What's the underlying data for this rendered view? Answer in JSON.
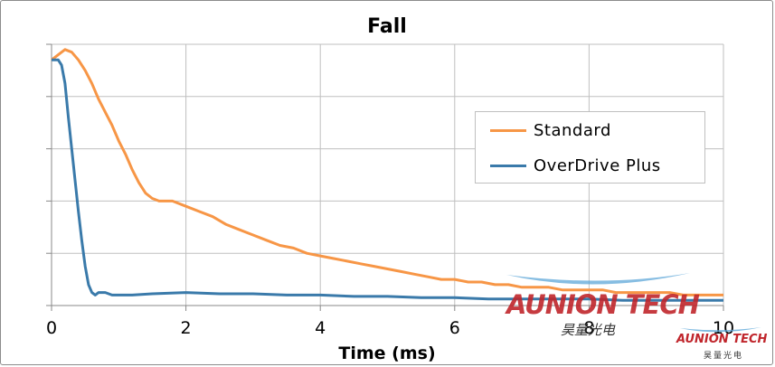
{
  "chart_data": {
    "type": "line",
    "title": "Fall",
    "xlabel": "Time (ms)",
    "ylabel": "",
    "xlim": [
      0,
      10
    ],
    "ylim": [
      0,
      1
    ],
    "x_ticks": [
      "0",
      "2",
      "4",
      "6",
      "8",
      "10"
    ],
    "grid": true,
    "legend_position": "center-right",
    "series": [
      {
        "name": "Standard",
        "color": "#f79646",
        "points": [
          [
            0,
            0.94
          ],
          [
            0.1,
            0.96
          ],
          [
            0.2,
            0.98
          ],
          [
            0.3,
            0.97
          ],
          [
            0.4,
            0.94
          ],
          [
            0.5,
            0.9
          ],
          [
            0.6,
            0.85
          ],
          [
            0.7,
            0.79
          ],
          [
            0.8,
            0.74
          ],
          [
            0.9,
            0.69
          ],
          [
            1.0,
            0.63
          ],
          [
            1.1,
            0.58
          ],
          [
            1.2,
            0.52
          ],
          [
            1.3,
            0.47
          ],
          [
            1.4,
            0.43
          ],
          [
            1.5,
            0.41
          ],
          [
            1.6,
            0.4
          ],
          [
            1.8,
            0.4
          ],
          [
            2.0,
            0.38
          ],
          [
            2.2,
            0.36
          ],
          [
            2.4,
            0.34
          ],
          [
            2.6,
            0.31
          ],
          [
            2.8,
            0.29
          ],
          [
            3.0,
            0.27
          ],
          [
            3.2,
            0.25
          ],
          [
            3.4,
            0.23
          ],
          [
            3.6,
            0.22
          ],
          [
            3.8,
            0.2
          ],
          [
            4.0,
            0.19
          ],
          [
            4.2,
            0.18
          ],
          [
            4.4,
            0.17
          ],
          [
            4.6,
            0.16
          ],
          [
            4.8,
            0.15
          ],
          [
            5.0,
            0.14
          ],
          [
            5.2,
            0.13
          ],
          [
            5.4,
            0.12
          ],
          [
            5.6,
            0.11
          ],
          [
            5.8,
            0.1
          ],
          [
            6.0,
            0.1
          ],
          [
            6.2,
            0.09
          ],
          [
            6.4,
            0.09
          ],
          [
            6.6,
            0.08
          ],
          [
            6.8,
            0.08
          ],
          [
            7.0,
            0.07
          ],
          [
            7.2,
            0.07
          ],
          [
            7.4,
            0.07
          ],
          [
            7.6,
            0.06
          ],
          [
            7.8,
            0.06
          ],
          [
            8.0,
            0.06
          ],
          [
            8.2,
            0.06
          ],
          [
            8.4,
            0.05
          ],
          [
            8.6,
            0.05
          ],
          [
            8.8,
            0.05
          ],
          [
            9.0,
            0.05
          ],
          [
            9.2,
            0.05
          ],
          [
            9.4,
            0.04
          ],
          [
            9.6,
            0.04
          ],
          [
            9.8,
            0.04
          ],
          [
            10.0,
            0.04
          ]
        ]
      },
      {
        "name": "OverDrive Plus",
        "color": "#3a7aaa",
        "points": [
          [
            0,
            0.94
          ],
          [
            0.1,
            0.94
          ],
          [
            0.15,
            0.92
          ],
          [
            0.2,
            0.85
          ],
          [
            0.25,
            0.72
          ],
          [
            0.3,
            0.6
          ],
          [
            0.35,
            0.48
          ],
          [
            0.4,
            0.36
          ],
          [
            0.45,
            0.25
          ],
          [
            0.5,
            0.15
          ],
          [
            0.55,
            0.08
          ],
          [
            0.6,
            0.05
          ],
          [
            0.65,
            0.04
          ],
          [
            0.7,
            0.05
          ],
          [
            0.8,
            0.05
          ],
          [
            0.9,
            0.04
          ],
          [
            1.0,
            0.04
          ],
          [
            1.2,
            0.04
          ],
          [
            1.5,
            0.045
          ],
          [
            2.0,
            0.05
          ],
          [
            2.5,
            0.045
          ],
          [
            3.0,
            0.045
          ],
          [
            3.5,
            0.04
          ],
          [
            4.0,
            0.04
          ],
          [
            4.5,
            0.035
          ],
          [
            5.0,
            0.035
          ],
          [
            5.5,
            0.03
          ],
          [
            6.0,
            0.03
          ],
          [
            6.5,
            0.025
          ],
          [
            7.0,
            0.025
          ],
          [
            7.5,
            0.025
          ],
          [
            8.0,
            0.025
          ],
          [
            8.5,
            0.02
          ],
          [
            9.0,
            0.02
          ],
          [
            9.5,
            0.02
          ],
          [
            10.0,
            0.02
          ]
        ]
      }
    ]
  },
  "watermark": {
    "text": "AUNION TECH",
    "text_cn": "昊量光电"
  },
  "logo": {
    "text": "AUNION TECH",
    "text_cn": "昊量光电"
  }
}
